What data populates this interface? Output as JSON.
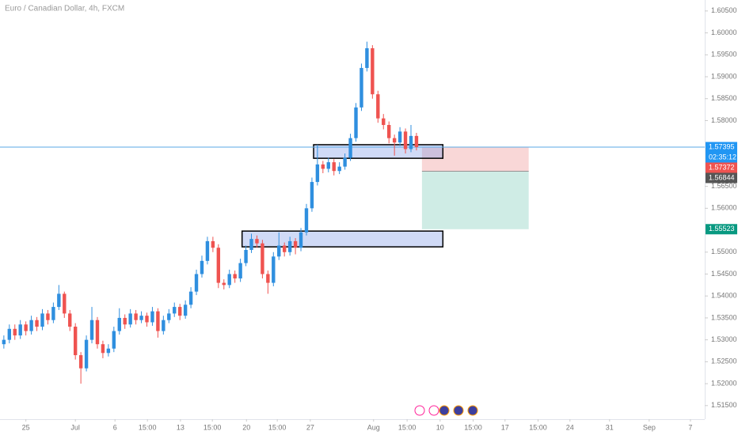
{
  "chart_data": {
    "type": "candlestick",
    "title": "Euro / Canadian Dollar, 4h, FXCM",
    "up_color": "#2f8fdf",
    "down_color": "#ef5350",
    "open": [
      1.529,
      1.53,
      1.5325,
      1.531,
      1.5335,
      1.532,
      1.5345,
      1.533,
      1.536,
      1.5345,
      1.5375,
      1.5405,
      1.536,
      1.533,
      1.5265,
      1.5235,
      1.53,
      1.5345,
      1.529,
      1.527,
      1.528,
      1.532,
      1.535,
      1.5335,
      1.536,
      1.5345,
      1.5355,
      1.534,
      1.5365,
      1.532,
      1.5345,
      1.536,
      1.5375,
      1.5355,
      1.538,
      1.541,
      1.545,
      1.548,
      1.5525,
      1.551,
      1.543,
      1.5425,
      1.545,
      1.544,
      1.5475,
      1.5505,
      1.553,
      1.552,
      1.545,
      1.543,
      1.549,
      1.5515,
      1.55,
      1.5525,
      1.551,
      1.5545,
      1.56,
      1.566,
      1.57,
      1.569,
      1.5705,
      1.5685,
      1.5695,
      1.5715,
      1.576,
      1.583,
      1.592,
      1.5965,
      1.586,
      1.5805,
      1.579,
      1.576,
      1.575,
      1.5775,
      1.5735,
      1.5765
    ],
    "high": [
      1.531,
      1.5335,
      1.5335,
      1.5345,
      1.5342,
      1.5355,
      1.5352,
      1.537,
      1.5368,
      1.5385,
      1.5425,
      1.541,
      1.5368,
      1.5338,
      1.5272,
      1.531,
      1.5375,
      1.5352,
      1.5298,
      1.529,
      1.533,
      1.5372,
      1.5358,
      1.537,
      1.5368,
      1.5365,
      1.5362,
      1.5375,
      1.5372,
      1.5355,
      1.537,
      1.5385,
      1.5382,
      1.539,
      1.542,
      1.546,
      1.5492,
      1.5535,
      1.5535,
      1.5518,
      1.5438,
      1.546,
      1.5458,
      1.5485,
      1.5515,
      1.5542,
      1.5538,
      1.5528,
      1.5458,
      1.55,
      1.5545,
      1.5522,
      1.5535,
      1.5532,
      1.5555,
      1.561,
      1.567,
      1.5745,
      1.5708,
      1.5715,
      1.5712,
      1.5705,
      1.5725,
      1.577,
      1.584,
      1.593,
      1.598,
      1.5972,
      1.5868,
      1.5815,
      1.5798,
      1.5768,
      1.5785,
      1.5782,
      1.579,
      1.5772
    ],
    "low": [
      1.528,
      1.5292,
      1.53,
      1.5302,
      1.531,
      1.5312,
      1.532,
      1.5322,
      1.5335,
      1.5338,
      1.5368,
      1.535,
      1.532,
      1.5255,
      1.52,
      1.5228,
      1.5292,
      1.528,
      1.5258,
      1.5262,
      1.5272,
      1.5312,
      1.5325,
      1.5328,
      1.5335,
      1.5338,
      1.533,
      1.5332,
      1.5305,
      1.5312,
      1.5338,
      1.5352,
      1.5345,
      1.5348,
      1.5372,
      1.5402,
      1.5442,
      1.5472,
      1.55,
      1.5418,
      1.5415,
      1.5418,
      1.543,
      1.5432,
      1.5468,
      1.5498,
      1.551,
      1.544,
      1.5405,
      1.5422,
      1.5482,
      1.549,
      1.5492,
      1.5495,
      1.5502,
      1.5538,
      1.5592,
      1.5652,
      1.568,
      1.5682,
      1.5675,
      1.5678,
      1.5688,
      1.5708,
      1.5752,
      1.5822,
      1.5912,
      1.585,
      1.5795,
      1.578,
      1.5748,
      1.572,
      1.5742,
      1.5725,
      1.5728,
      1.5732
    ],
    "close": [
      1.53,
      1.5325,
      1.531,
      1.5335,
      1.532,
      1.5345,
      1.533,
      1.536,
      1.5345,
      1.5375,
      1.5405,
      1.536,
      1.533,
      1.5265,
      1.5235,
      1.53,
      1.5345,
      1.529,
      1.527,
      1.528,
      1.532,
      1.535,
      1.5335,
      1.536,
      1.5345,
      1.5355,
      1.534,
      1.5365,
      1.532,
      1.5345,
      1.536,
      1.5375,
      1.5355,
      1.538,
      1.541,
      1.545,
      1.548,
      1.5525,
      1.551,
      1.543,
      1.5425,
      1.545,
      1.544,
      1.5475,
      1.5505,
      1.553,
      1.552,
      1.545,
      1.543,
      1.549,
      1.5515,
      1.55,
      1.5525,
      1.551,
      1.5545,
      1.56,
      1.566,
      1.57,
      1.569,
      1.5705,
      1.5685,
      1.5695,
      1.5715,
      1.576,
      1.583,
      1.592,
      1.5965,
      1.586,
      1.5805,
      1.579,
      1.576,
      1.575,
      1.5775,
      1.5735,
      1.5765,
      1.57395
    ],
    "xlim": [
      -0.7,
      127.4
    ],
    "xticks": [
      {
        "value": 4.0,
        "label": "25"
      },
      {
        "value": 13.0,
        "label": "Jul"
      },
      {
        "value": 20.2,
        "label": "6"
      },
      {
        "value": 26.1,
        "label": "15:00"
      },
      {
        "value": 32.1,
        "label": "13"
      },
      {
        "value": 37.9,
        "label": "15:00"
      },
      {
        "value": 44.1,
        "label": "20"
      },
      {
        "value": 49.7,
        "label": "15:00"
      },
      {
        "value": 55.7,
        "label": "27"
      },
      {
        "value": 67.2,
        "label": "Aug"
      },
      {
        "value": 73.3,
        "label": "15:00"
      },
      {
        "value": 79.3,
        "label": "10"
      },
      {
        "value": 85.3,
        "label": "15:00"
      },
      {
        "value": 91.1,
        "label": "17"
      },
      {
        "value": 97.1,
        "label": "15:00"
      },
      {
        "value": 102.9,
        "label": "24"
      },
      {
        "value": 110.1,
        "label": "31"
      },
      {
        "value": 117.3,
        "label": "Sep"
      },
      {
        "value": 124.8,
        "label": "7"
      }
    ],
    "ylim": [
      1.5119,
      1.6075
    ],
    "yticks": [
      {
        "value": 1.515,
        "label": "1.51500"
      },
      {
        "value": 1.52,
        "label": "1.52000"
      },
      {
        "value": 1.525,
        "label": "1.52500"
      },
      {
        "value": 1.53,
        "label": "1.53000"
      },
      {
        "value": 1.535,
        "label": "1.53500"
      },
      {
        "value": 1.54,
        "label": "1.54000"
      },
      {
        "value": 1.545,
        "label": "1.54500"
      },
      {
        "value": 1.55,
        "label": "1.55000"
      },
      {
        "value": 1.56,
        "label": "1.56000"
      },
      {
        "value": 1.565,
        "label": "1.56500"
      },
      {
        "value": 1.58,
        "label": "1.58000"
      },
      {
        "value": 1.585,
        "label": "1.58500"
      },
      {
        "value": 1.59,
        "label": "1.59000"
      },
      {
        "value": 1.595,
        "label": "1.59500"
      },
      {
        "value": 1.6,
        "label": "1.60000"
      },
      {
        "value": 1.605,
        "label": "1.60500"
      }
    ],
    "grid": false,
    "current_price": 1.57395,
    "countdown": "02:35:12",
    "bid_price": 1.57372,
    "zones": [
      {
        "x": [
          56.3,
          79.8
        ],
        "y": [
          1.5714,
          1.5745
        ]
      },
      {
        "x": [
          43.3,
          79.8
        ],
        "y": [
          1.5512,
          1.5548
        ]
      }
    ],
    "position": {
      "x": [
        76.0,
        95.4
      ],
      "stop": 1.57395,
      "entry": 1.56844,
      "target": 1.55523
    }
  }
}
